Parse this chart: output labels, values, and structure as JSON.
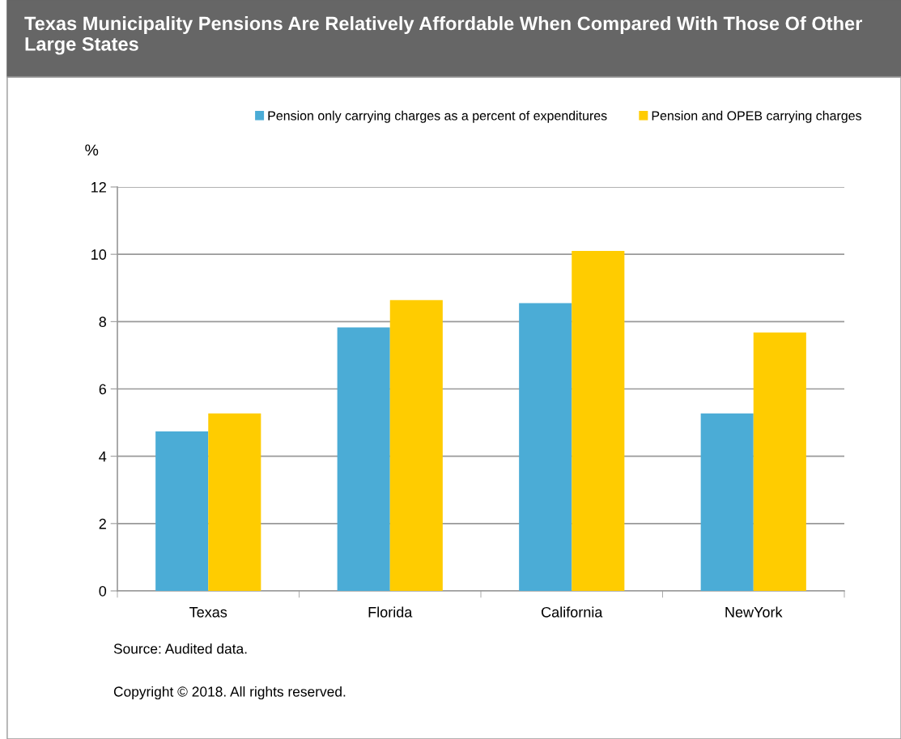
{
  "chart_data": {
    "type": "bar",
    "title": "Texas Municipality Pensions Are Relatively Affordable When Compared With Those Of Other Large States",
    "ylabel": "%",
    "categories": [
      "Texas",
      "Florida",
      "California",
      "NewYork"
    ],
    "series": [
      {
        "name": "Pension only carrying charges as a percent of expenditures",
        "color": "#4bacd6",
        "values": [
          4.74,
          7.83,
          8.55,
          5.27
        ]
      },
      {
        "name": "Pension and OPEB carrying charges",
        "color": "#ffcc00",
        "values": [
          5.27,
          8.64,
          10.1,
          7.68
        ]
      }
    ],
    "ylim": [
      0,
      12
    ],
    "yticks": [
      0,
      2,
      4,
      6,
      8,
      10,
      12
    ],
    "grid": "y",
    "legend": "top",
    "annotations": [
      "Source: Audited data.",
      "Copyright © 2018. All rights reserved."
    ]
  }
}
